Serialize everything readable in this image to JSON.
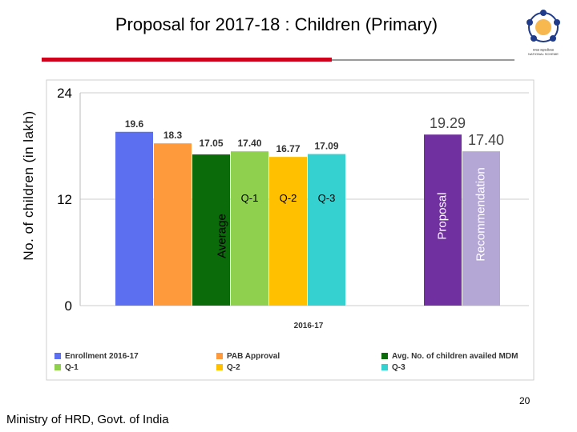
{
  "slide": {
    "title": "Proposal for 2017-18 : Children (Primary)",
    "logo_lines": [
      "ममता सहनशीलता",
      "NATIONAL SCHEME"
    ],
    "page_number": "20",
    "footer": "Ministry of HRD, Govt. of India",
    "accent_color": "#d0021b"
  },
  "chart_data": {
    "type": "bar",
    "ylabel": "No. of children (in lakh)",
    "xlabel": "2016-17",
    "ylim": [
      0,
      24
    ],
    "yticks": [
      0,
      12,
      24
    ],
    "grid": true,
    "legend_position": "bottom",
    "series": [
      {
        "name": "Enrollment 2016-17",
        "value": 19.6,
        "label": "19.6",
        "color": "#5b6ff0"
      },
      {
        "name": "PAB Approval",
        "value": 18.3,
        "label": "18.3",
        "color": "#ff9a3c"
      },
      {
        "name": "Avg. No. of children availed MDM",
        "value": 17.05,
        "label": "17.05",
        "color": "#0b6b0b"
      },
      {
        "name": "Q-1",
        "value": 17.4,
        "label": "17.40",
        "color": "#8fd14f"
      },
      {
        "name": "Q-2",
        "value": 16.77,
        "label": "16.77",
        "color": "#ffc000"
      },
      {
        "name": "Q-3",
        "value": 17.09,
        "label": "17.09",
        "color": "#35d0d0"
      },
      {
        "name": "Proposal",
        "value": 19.29,
        "label": "19.29",
        "color": "#7030a0"
      },
      {
        "name": "Recommendation",
        "value": 17.4,
        "label": "17.40",
        "color": "#b4a7d6"
      }
    ],
    "bar_annotations": [
      "",
      "",
      "Average",
      "Q-1",
      "Q-2",
      "Q-3",
      "Proposal",
      "Recommendation"
    ],
    "legend": [
      {
        "label": "Enrollment 2016-17",
        "color": "#5b6ff0"
      },
      {
        "label": "PAB Approval",
        "color": "#ff9a3c"
      },
      {
        "label": "Avg. No. of children availed MDM",
        "color": "#0b6b0b"
      },
      {
        "label": "Q-1",
        "color": "#8fd14f"
      },
      {
        "label": "Q-2",
        "color": "#ffc000"
      },
      {
        "label": "Q-3",
        "color": "#35d0d0"
      }
    ]
  }
}
